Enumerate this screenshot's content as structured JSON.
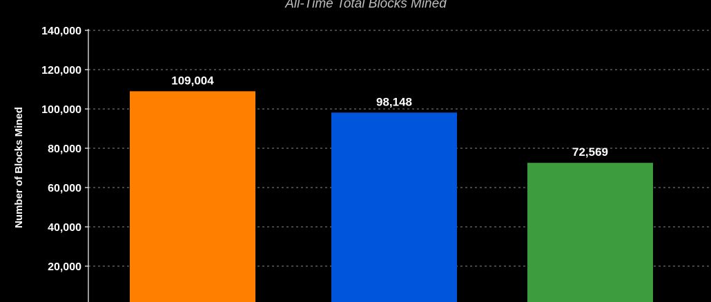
{
  "chart_data": {
    "type": "bar",
    "title": "All-Time Total Blocks Mined",
    "xlabel": "",
    "ylabel": "Number of Blocks Mined",
    "ylim": [
      0,
      140000
    ],
    "yticks": [
      20000,
      40000,
      60000,
      80000,
      100000,
      120000,
      140000
    ],
    "ytick_labels": [
      "20,000",
      "40,000",
      "60,000",
      "80,000",
      "100,000",
      "120,000",
      "140,000"
    ],
    "grid": true,
    "legend": "none",
    "values": [
      109004,
      98148,
      72569
    ],
    "value_labels": [
      "109,004",
      "98,148",
      "72,569"
    ],
    "colors": [
      "#ff7f00",
      "#0055dd",
      "#3d9c3d"
    ]
  }
}
